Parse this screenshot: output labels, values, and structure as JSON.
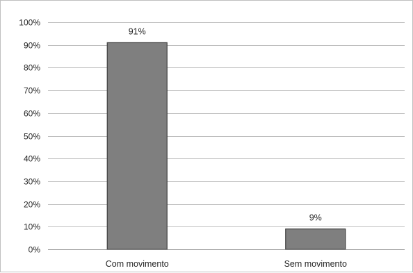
{
  "chart_data": {
    "type": "bar",
    "categories": [
      "Com movimento",
      "Sem movimento"
    ],
    "values": [
      91,
      9
    ],
    "data_labels": [
      "91%",
      "9%"
    ],
    "ylim": [
      0,
      100
    ],
    "y_ticks": [
      0,
      10,
      20,
      30,
      40,
      50,
      60,
      70,
      80,
      90,
      100
    ],
    "y_tick_labels": [
      "0%",
      "10%",
      "20%",
      "30%",
      "40%",
      "50%",
      "60%",
      "70%",
      "80%",
      "90%",
      "100%"
    ],
    "grid": true,
    "legend": "none",
    "colors": {
      "bar_fill": "#7f7f7f",
      "bar_stroke": "#3f3f3f",
      "grid": "#bfbfbf",
      "axis": "#8c8c8c"
    }
  }
}
